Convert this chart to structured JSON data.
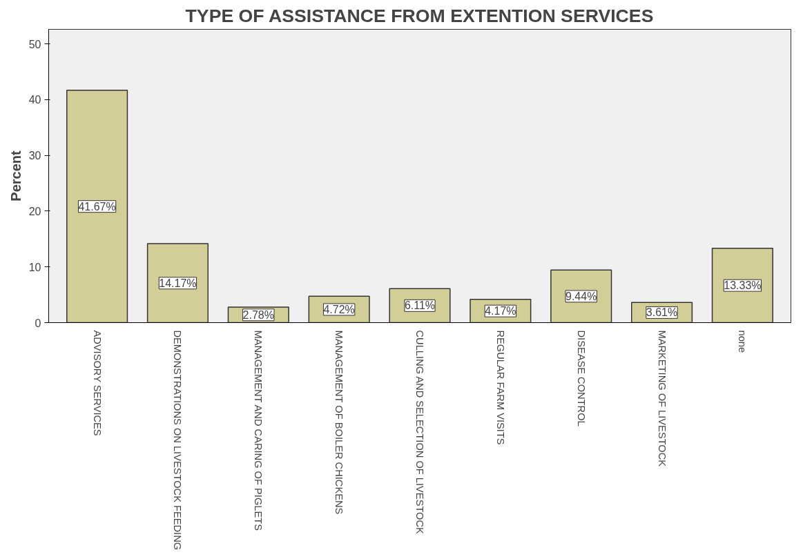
{
  "chart_data": {
    "type": "bar",
    "title": "TYPE OF ASSISTANCE FROM EXTENTION SERVICES",
    "ylabel": "Percent",
    "categories": [
      "ADVISORY SERVICES",
      "DEMONSTRATIONS ON LIVESTOCK FEEDING",
      "MANAGEMENT AND CARING OF PIGLETS",
      "MANAGEMENT OF BOILER CHICKENS",
      "CULLING AND SELECTION OF LIVESTOCK",
      "REGULAR FARM VISITS",
      "DISEASE CONTROL",
      "MARKETING OF LIVESTOCK",
      "none"
    ],
    "values": [
      41.67,
      14.17,
      2.78,
      4.72,
      6.11,
      4.17,
      9.44,
      3.61,
      13.33
    ],
    "value_labels": [
      "41.67%",
      "14.17%",
      "2.78%",
      "4.72%",
      "6.11%",
      "4.17%",
      "9.44%",
      "3.61%",
      "13.33%"
    ],
    "color": "#d3ce97",
    "ylim": [
      0,
      52.6
    ],
    "yticks": [
      0,
      10,
      20,
      30,
      40,
      50
    ],
    "grid": false
  }
}
